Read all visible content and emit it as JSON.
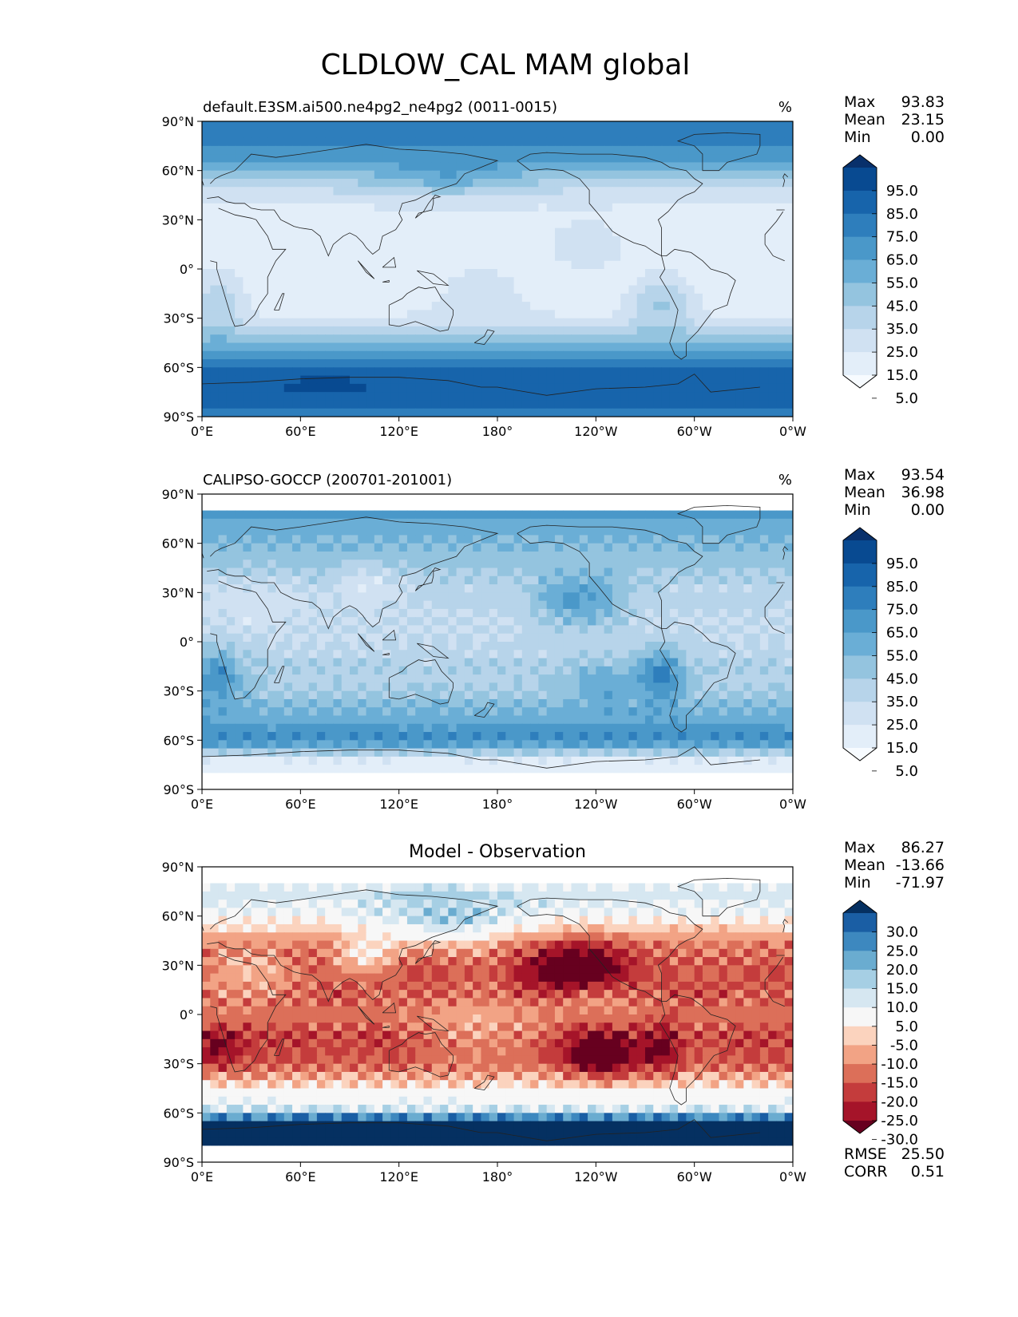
{
  "figure": {
    "title": "CLDLOW_CAL MAM global"
  },
  "panels": [
    {
      "title_left": "default.E3SM.ai500.ne4pg2_ne4pg2 (0011-0015)",
      "title_center": "",
      "units": "%",
      "stats": [
        {
          "label": "Max",
          "value": "93.83"
        },
        {
          "label": "Mean",
          "value": "23.15"
        },
        {
          "label": "Min",
          "value": "0.00"
        }
      ],
      "colorbar": {
        "labels": [
          "95.0",
          "85.0",
          "75.0",
          "65.0",
          "55.0",
          "45.0",
          "35.0",
          "25.0",
          "15.0",
          "5.0"
        ],
        "colors_low_to_high": [
          "#f7fbff",
          "#e3eef9",
          "#d0e1f2",
          "#b7d4ea",
          "#94c4df",
          "#6aaed6",
          "#4a98c9",
          "#2e7ebc",
          "#1764ab",
          "#084a91",
          "#08306b"
        ]
      },
      "footer_stats": []
    },
    {
      "title_left": "CALIPSO-GOCCP (200701-201001)",
      "title_center": "",
      "units": "%",
      "stats": [
        {
          "label": "Max",
          "value": "93.54"
        },
        {
          "label": "Mean",
          "value": "36.98"
        },
        {
          "label": "Min",
          "value": "0.00"
        }
      ],
      "colorbar": {
        "labels": [
          "95.0",
          "85.0",
          "75.0",
          "65.0",
          "55.0",
          "45.0",
          "35.0",
          "25.0",
          "15.0",
          "5.0"
        ],
        "colors_low_to_high": [
          "#f7fbff",
          "#e3eef9",
          "#d0e1f2",
          "#b7d4ea",
          "#94c4df",
          "#6aaed6",
          "#4a98c9",
          "#2e7ebc",
          "#1764ab",
          "#084a91",
          "#08306b"
        ]
      },
      "footer_stats": []
    },
    {
      "title_left": "",
      "title_center": "Model - Observation",
      "units": "",
      "stats": [
        {
          "label": "Max",
          "value": "86.27"
        },
        {
          "label": "Mean",
          "value": "-13.66"
        },
        {
          "label": "Min",
          "value": "-71.97"
        }
      ],
      "colorbar": {
        "labels": [
          "30.0",
          "25.0",
          "20.0",
          "15.0",
          "10.0",
          "5.0",
          "-5.0",
          "-10.0",
          "-15.0",
          "-20.0",
          "-25.0",
          "-30.0"
        ],
        "colors_low_to_high": [
          "#67001f",
          "#a51429",
          "#c43c3c",
          "#dc6f59",
          "#f2a385",
          "#fbd3be",
          "#f7f7f7",
          "#d6e7f1",
          "#a6cfe4",
          "#6aacd0",
          "#3d88bf",
          "#1a5ea4",
          "#053061"
        ]
      },
      "footer_stats": [
        {
          "label": "RMSE",
          "value": "25.50"
        },
        {
          "label": "CORR",
          "value": "0.51"
        }
      ]
    }
  ],
  "axes": {
    "y_ticks": [
      "90°N",
      "60°N",
      "30°N",
      "0°",
      "30°S",
      "60°S",
      "90°S"
    ],
    "x_ticks": [
      "0°E",
      "60°E",
      "120°E",
      "180°",
      "120°W",
      "60°W",
      "0°W"
    ]
  },
  "map_data": {
    "variable": "CLDLOW_CAL",
    "season": "MAM",
    "region": "global",
    "value_scale": "0-100 (%) for model and observation; difference scale -30..30 with open ends",
    "model_zonal_profile": [
      {
        "lat": 90,
        "value": 75
      },
      {
        "lat": 75,
        "value": 65
      },
      {
        "lat": 60,
        "value": 45
      },
      {
        "lat": 45,
        "value": 20
      },
      {
        "lat": 30,
        "value": 8
      },
      {
        "lat": 15,
        "value": 5
      },
      {
        "lat": 0,
        "value": 8
      },
      {
        "lat": -15,
        "value": 10
      },
      {
        "lat": -30,
        "value": 15
      },
      {
        "lat": -45,
        "value": 45
      },
      {
        "lat": -60,
        "value": 75
      },
      {
        "lat": -75,
        "value": 80
      },
      {
        "lat": -90,
        "value": 72
      }
    ],
    "obs_zonal_profile": [
      {
        "lat": 82,
        "value": 70
      },
      {
        "lat": 75,
        "value": 55
      },
      {
        "lat": 60,
        "value": 45
      },
      {
        "lat": 45,
        "value": 35
      },
      {
        "lat": 30,
        "value": 28
      },
      {
        "lat": 15,
        "value": 25
      },
      {
        "lat": 0,
        "value": 25
      },
      {
        "lat": -15,
        "value": 32
      },
      {
        "lat": -30,
        "value": 35
      },
      {
        "lat": -45,
        "value": 50
      },
      {
        "lat": -60,
        "value": 65
      },
      {
        "lat": -72,
        "value": 15
      },
      {
        "lat": -82,
        "value": 5
      }
    ],
    "obs_coverage_lat": [
      -82,
      82
    ]
  }
}
